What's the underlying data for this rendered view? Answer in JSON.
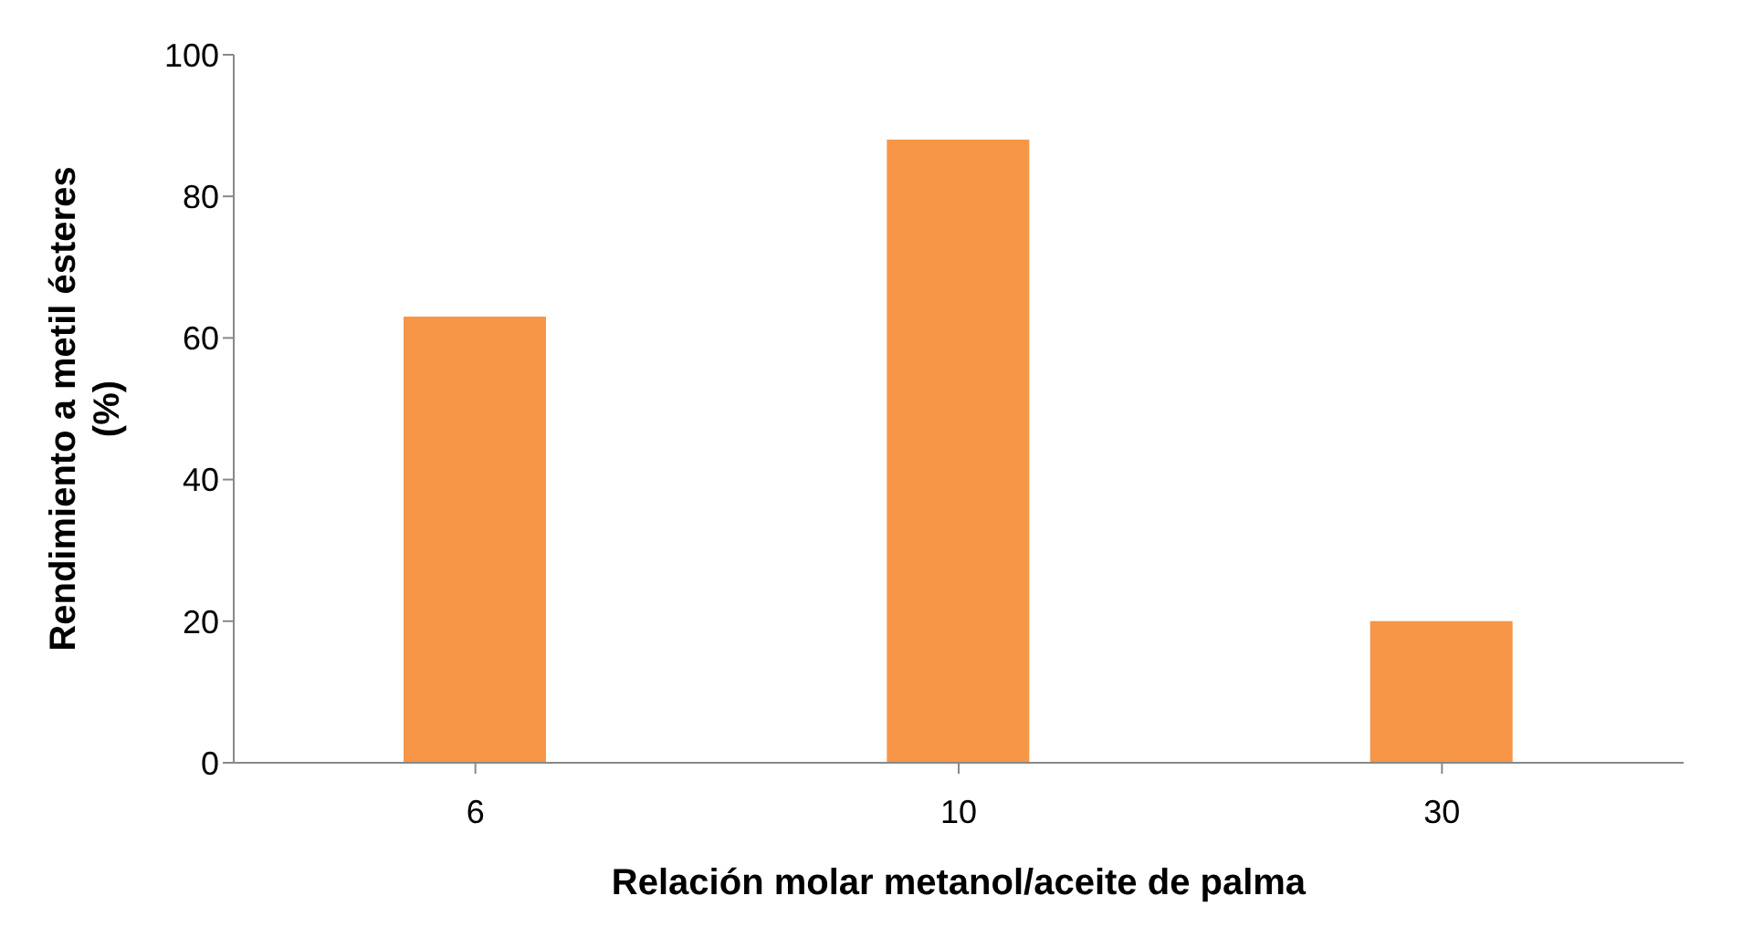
{
  "chart_data": {
    "type": "bar",
    "xlabel": "Relación molar metanol/aceite de palma",
    "ylabel": "Rendimiento a metil ésteres (%)",
    "categories": [
      "6",
      "10",
      "30"
    ],
    "values": [
      63,
      88,
      20
    ],
    "color": "#f79646",
    "ylim": [
      0,
      100
    ],
    "yticks": [
      0,
      20,
      40,
      60,
      80,
      100
    ],
    "grid": false
  }
}
